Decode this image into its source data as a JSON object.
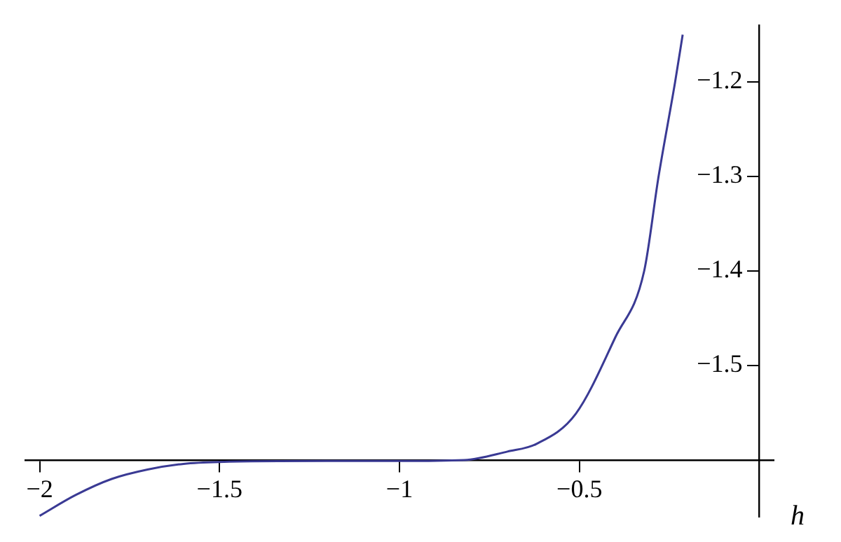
{
  "chart_data": {
    "type": "line",
    "xlabel": "h",
    "grid": false,
    "legend": false,
    "marker": "none",
    "line_style": "solid",
    "xlim": [
      -2.04,
      0.04
    ],
    "ylim": [
      -1.66,
      -1.14
    ],
    "xticks": [
      {
        "value": -2,
        "label": "−2"
      },
      {
        "value": -1.5,
        "label": "−1.5"
      },
      {
        "value": -1,
        "label": "−1"
      },
      {
        "value": -0.5,
        "label": "−0.5"
      }
    ],
    "yticks": [
      {
        "value": -1.5,
        "label": "−1.5"
      },
      {
        "value": -1.4,
        "label": "−1.4"
      },
      {
        "value": -1.3,
        "label": "−1.3"
      },
      {
        "value": -1.2,
        "label": "−1.2"
      }
    ],
    "series": [
      {
        "color": "#3a3a94",
        "x": [
          -2,
          -1.9,
          -1.8,
          -1.7,
          -1.6,
          -1.5,
          -1.2,
          -1,
          -0.82,
          -0.7,
          -0.62,
          -0.51,
          -0.4,
          -0.32,
          -0.28,
          -0.234,
          -0.213
        ],
        "values": [
          -1.659,
          -1.637,
          -1.62,
          -1.61,
          -1.604,
          -1.602,
          -1.601,
          -1.601,
          -1.6,
          -1.591,
          -1.583,
          -1.551,
          -1.47,
          -1.4,
          -1.3,
          -1.2,
          -1.15
        ]
      }
    ]
  }
}
